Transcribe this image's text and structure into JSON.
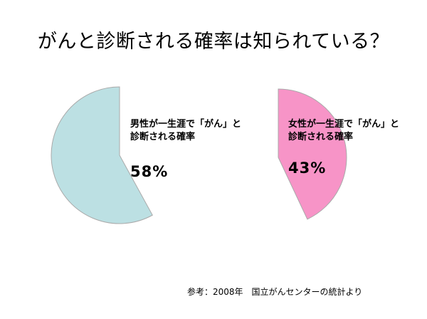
{
  "title": "がんと診断される確率は知られている？",
  "source_note": "参考：2008年　国立がんセンターの統計より",
  "colors": {
    "men": "#bce0e3",
    "women": "#f794c7",
    "stroke": "#aaaaaa"
  },
  "chart_data": [
    {
      "type": "pie",
      "label": "男性が一生涯で「がん」と診断される確率",
      "caption_lines": [
        "男性が一生涯で「がん」と",
        "診断される確率"
      ],
      "value_label": "58%",
      "value": 58,
      "color": "#bce0e3",
      "side": "left"
    },
    {
      "type": "pie",
      "label": "女性が一生涯で「がん」と診断される確率",
      "caption_lines": [
        "女性が一生涯で「がん」と",
        "診断される確率"
      ],
      "value_label": "43%",
      "value": 43,
      "color": "#f794c7",
      "side": "right"
    }
  ]
}
